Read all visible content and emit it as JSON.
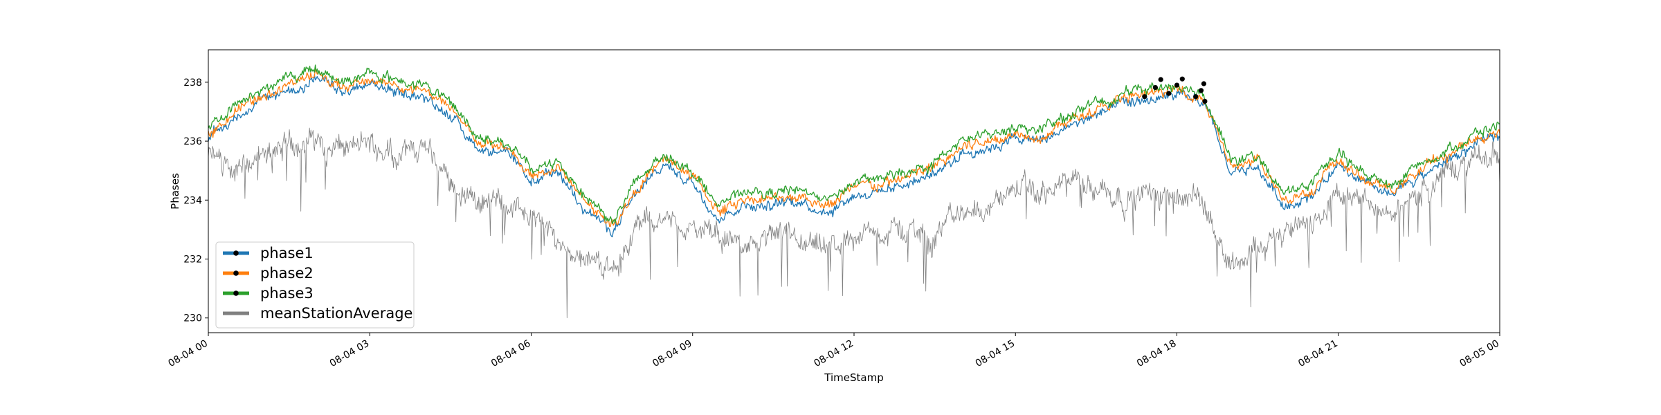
{
  "chart_data": {
    "type": "line",
    "xlabel": "TimeStamp",
    "ylabel": "Phases",
    "x_range": [
      "08-04 00",
      "08-05 00"
    ],
    "ylim": [
      229.5,
      239.1
    ],
    "x_ticks": [
      "08-04 00",
      "08-04 03",
      "08-04 06",
      "08-04 09",
      "08-04 12",
      "08-04 15",
      "08-04 18",
      "08-04 21",
      "08-05 00"
    ],
    "y_ticks": [
      230,
      232,
      234,
      236,
      238
    ],
    "y_tick_labels": [
      "230",
      "232",
      "234",
      "236",
      "238"
    ],
    "grid": false,
    "legend": {
      "placement": "lower-left"
    },
    "x_hours": [
      0,
      0.5,
      1,
      1.5,
      2,
      2.5,
      3,
      3.5,
      4,
      4.5,
      5,
      5.5,
      6,
      6.5,
      7,
      7.5,
      8,
      8.5,
      9,
      9.5,
      10,
      10.5,
      11,
      11.5,
      12,
      12.5,
      13,
      13.5,
      14,
      14.5,
      15,
      15.5,
      16,
      16.5,
      17,
      17.5,
      18,
      18.5,
      19,
      19.5,
      20,
      20.5,
      21,
      21.5,
      22,
      22.5,
      23,
      23.5,
      24
    ],
    "series": [
      {
        "name": "phase1",
        "color": "#1f77b4",
        "marker": "point",
        "values": [
          236.1,
          236.8,
          237.4,
          237.7,
          238.1,
          237.6,
          237.9,
          237.7,
          237.5,
          236.9,
          235.8,
          235.6,
          234.6,
          234.9,
          233.8,
          232.9,
          234.3,
          235.2,
          234.6,
          233.4,
          233.9,
          233.8,
          234.0,
          233.6,
          234.2,
          234.3,
          234.6,
          234.9,
          235.6,
          235.8,
          236.1,
          236.0,
          236.5,
          236.9,
          237.2,
          237.4,
          237.5,
          237.3,
          234.9,
          235.1,
          233.8,
          234.2,
          235.1,
          234.5,
          234.1,
          234.8,
          235.3,
          235.8,
          236.2
        ]
      },
      {
        "name": "phase2",
        "color": "#ff7f0e",
        "marker": "point",
        "values": [
          236.3,
          237.0,
          237.6,
          237.9,
          238.3,
          237.8,
          238.1,
          237.9,
          237.7,
          237.1,
          236.0,
          235.8,
          234.8,
          235.1,
          234.0,
          233.1,
          234.5,
          235.4,
          234.8,
          233.6,
          234.1,
          234.0,
          234.2,
          233.8,
          234.4,
          234.5,
          234.8,
          235.1,
          235.8,
          236.0,
          236.3,
          236.2,
          236.7,
          237.1,
          237.4,
          237.6,
          237.7,
          237.5,
          235.1,
          235.3,
          234.0,
          234.4,
          235.3,
          234.7,
          234.3,
          235.0,
          235.5,
          236.0,
          236.4
        ]
      },
      {
        "name": "phase3",
        "color": "#2ca02c",
        "marker": "point",
        "values": [
          236.5,
          237.2,
          237.8,
          238.1,
          238.5,
          238.0,
          238.3,
          238.1,
          237.9,
          237.3,
          236.2,
          236.0,
          235.0,
          235.3,
          234.2,
          233.3,
          234.7,
          235.6,
          235.0,
          233.8,
          234.3,
          234.2,
          234.4,
          234.0,
          234.6,
          234.7,
          235.0,
          235.3,
          236.0,
          236.2,
          236.5,
          236.4,
          236.9,
          237.3,
          237.6,
          237.8,
          237.9,
          237.7,
          235.3,
          235.5,
          234.2,
          234.6,
          235.5,
          234.9,
          234.5,
          235.2,
          235.7,
          236.2,
          236.6
        ]
      },
      {
        "name": "meanStationAverage",
        "color": "#808080",
        "marker": "none",
        "values": [
          235.5,
          235.0,
          235.4,
          235.9,
          236.1,
          235.7,
          235.9,
          235.6,
          235.8,
          234.6,
          234.0,
          233.9,
          233.6,
          232.6,
          232.1,
          231.6,
          233.2,
          233.4,
          233.0,
          232.7,
          232.6,
          232.8,
          232.4,
          232.2,
          232.8,
          232.9,
          233.0,
          232.9,
          233.6,
          233.8,
          234.4,
          234.2,
          234.6,
          234.5,
          234.1,
          234.2,
          234.4,
          233.9,
          231.9,
          232.3,
          232.8,
          233.1,
          234.2,
          233.9,
          233.6,
          234.3,
          234.9,
          235.3,
          235.6
        ]
      }
    ]
  }
}
